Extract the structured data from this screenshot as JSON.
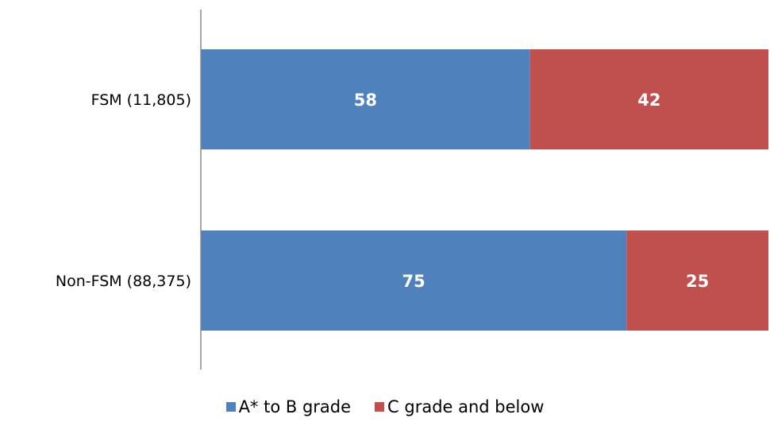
{
  "chart_data": {
    "type": "bar",
    "orientation": "horizontal",
    "stacked": true,
    "categories": [
      "FSM (11,805)",
      "Non-FSM (88,375)"
    ],
    "series": [
      {
        "name": "A* to B grade",
        "values": [
          58,
          75
        ],
        "color": "#4F81BD"
      },
      {
        "name": "C grade and below",
        "values": [
          42,
          25
        ],
        "color": "#C0504D"
      }
    ],
    "xlim": [
      0,
      100
    ],
    "grid": false,
    "legend": "bottom"
  }
}
